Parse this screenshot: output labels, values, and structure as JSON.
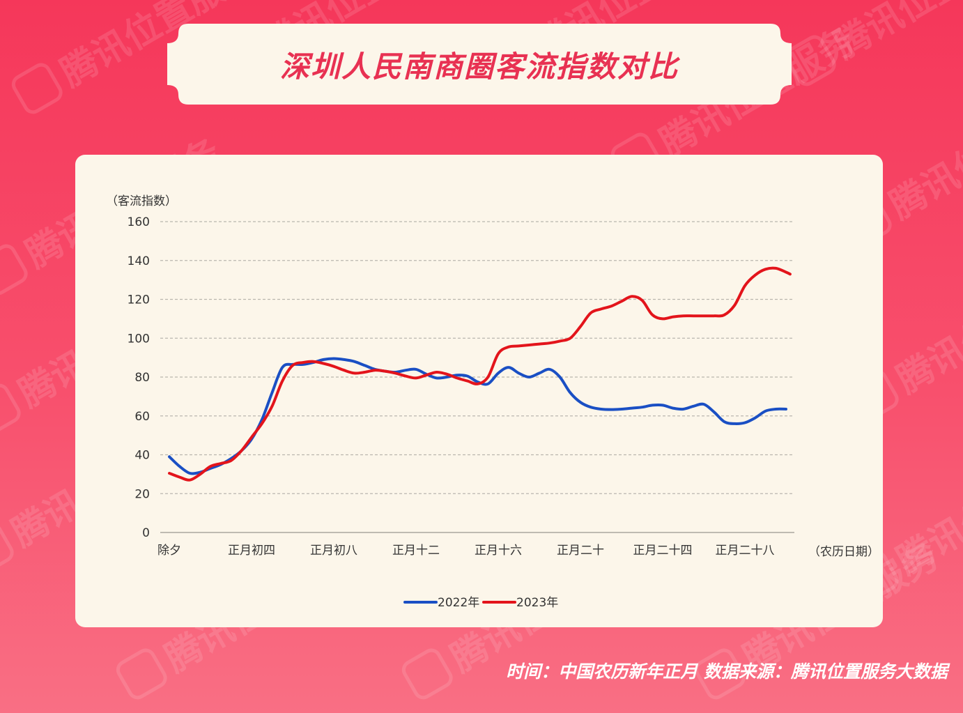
{
  "title": "深圳人民南商圈客流指数对比",
  "footer": "时间：中国农历新年正月   数据来源：腾讯位置服务大数据",
  "watermark_text": "腾讯位置服务",
  "colors": {
    "background": "#f5375a",
    "card": "#fcf6ea",
    "title": "#e83152",
    "series_2022": "#1a4fc4",
    "series_2023": "#e3141b"
  },
  "chart_data": {
    "type": "line",
    "ylabel": "（客流指数）",
    "xlabel": "（农历日期）",
    "ylim": [
      0,
      160
    ],
    "yticks": [
      0,
      20,
      40,
      60,
      80,
      100,
      120,
      140,
      160
    ],
    "grid": true,
    "legend_position": "bottom",
    "tick_labels": [
      {
        "day": 0,
        "label": "除夕"
      },
      {
        "day": 4,
        "label": "正月初四"
      },
      {
        "day": 8,
        "label": "正月初八"
      },
      {
        "day": 12,
        "label": "正月十二"
      },
      {
        "day": 16,
        "label": "正月十六"
      },
      {
        "day": 20,
        "label": "正月二十"
      },
      {
        "day": 24,
        "label": "正月二十四"
      },
      {
        "day": 28,
        "label": "正月二十八"
      }
    ],
    "series": [
      {
        "name": "2022年",
        "color": "#1a4fc4",
        "points": [
          [
            0,
            39
          ],
          [
            0.5,
            34
          ],
          [
            1,
            30.5
          ],
          [
            1.5,
            31
          ],
          [
            2,
            33
          ],
          [
            2.5,
            35
          ],
          [
            3,
            38
          ],
          [
            3.5,
            42
          ],
          [
            4,
            48
          ],
          [
            4.5,
            58
          ],
          [
            5,
            72
          ],
          [
            5.5,
            85
          ],
          [
            6,
            86.5
          ],
          [
            6.5,
            86.5
          ],
          [
            7,
            87.5
          ],
          [
            7.5,
            89
          ],
          [
            8,
            89.5
          ],
          [
            8.5,
            89
          ],
          [
            9,
            88
          ],
          [
            9.5,
            86
          ],
          [
            10,
            84
          ],
          [
            10.5,
            83
          ],
          [
            11,
            82.5
          ],
          [
            11.5,
            83.5
          ],
          [
            12,
            84
          ],
          [
            12.5,
            81.5
          ],
          [
            13,
            79.5
          ],
          [
            13.5,
            80
          ],
          [
            14,
            81
          ],
          [
            14.5,
            80.5
          ],
          [
            15,
            77.5
          ],
          [
            15.5,
            76.5
          ],
          [
            16,
            82
          ],
          [
            16.5,
            85
          ],
          [
            17,
            82
          ],
          [
            17.5,
            80
          ],
          [
            18,
            82
          ],
          [
            18.5,
            84
          ],
          [
            19,
            80
          ],
          [
            19.5,
            72
          ],
          [
            20,
            67
          ],
          [
            20.5,
            64.5
          ],
          [
            21,
            63.5
          ],
          [
            21.5,
            63.3
          ],
          [
            22,
            63.5
          ],
          [
            22.5,
            64
          ],
          [
            23,
            64.5
          ],
          [
            23.5,
            65.5
          ],
          [
            24,
            65.5
          ],
          [
            24.5,
            64
          ],
          [
            25,
            63.5
          ],
          [
            25.5,
            65
          ],
          [
            26,
            66
          ],
          [
            26.5,
            62
          ],
          [
            27,
            57
          ],
          [
            27.5,
            56
          ],
          [
            28,
            56.5
          ],
          [
            28.5,
            59
          ],
          [
            29,
            62.5
          ],
          [
            29.5,
            63.5
          ],
          [
            30,
            63.5
          ]
        ]
      },
      {
        "name": "2023年",
        "color": "#e3141b",
        "points": [
          [
            0,
            30.5
          ],
          [
            0.5,
            28.5
          ],
          [
            1,
            27
          ],
          [
            1.5,
            30
          ],
          [
            2,
            34
          ],
          [
            2.5,
            35.5
          ],
          [
            3,
            37
          ],
          [
            3.5,
            42
          ],
          [
            4,
            49
          ],
          [
            4.5,
            56
          ],
          [
            5,
            65
          ],
          [
            5.5,
            78
          ],
          [
            6,
            86
          ],
          [
            6.5,
            87.5
          ],
          [
            7,
            88
          ],
          [
            7.5,
            87
          ],
          [
            8,
            85.5
          ],
          [
            8.5,
            83.5
          ],
          [
            9,
            82
          ],
          [
            9.5,
            82.5
          ],
          [
            10,
            83.5
          ],
          [
            10.5,
            83
          ],
          [
            11,
            82
          ],
          [
            11.5,
            80.5
          ],
          [
            12,
            79.5
          ],
          [
            12.5,
            81
          ],
          [
            13,
            82.5
          ],
          [
            13.5,
            81.5
          ],
          [
            14,
            79.5
          ],
          [
            14.5,
            78
          ],
          [
            15,
            76.5
          ],
          [
            15.5,
            80
          ],
          [
            16,
            92
          ],
          [
            16.5,
            95.5
          ],
          [
            17,
            96
          ],
          [
            17.5,
            96.5
          ],
          [
            18,
            97
          ],
          [
            18.5,
            97.5
          ],
          [
            19,
            98.5
          ],
          [
            19.5,
            100
          ],
          [
            20,
            106
          ],
          [
            20.5,
            113
          ],
          [
            21,
            115
          ],
          [
            21.5,
            116.5
          ],
          [
            22,
            119
          ],
          [
            22.5,
            121.5
          ],
          [
            23,
            119.5
          ],
          [
            23.5,
            112
          ],
          [
            24,
            110
          ],
          [
            24.5,
            111
          ],
          [
            25,
            111.5
          ],
          [
            25.5,
            111.5
          ],
          [
            26,
            111.5
          ],
          [
            26.5,
            111.5
          ],
          [
            27,
            112
          ],
          [
            27.5,
            117
          ],
          [
            28,
            127
          ],
          [
            28.5,
            132.5
          ],
          [
            29,
            135.5
          ],
          [
            29.5,
            136
          ],
          [
            30,
            134
          ],
          [
            30.2,
            133
          ]
        ]
      }
    ]
  }
}
